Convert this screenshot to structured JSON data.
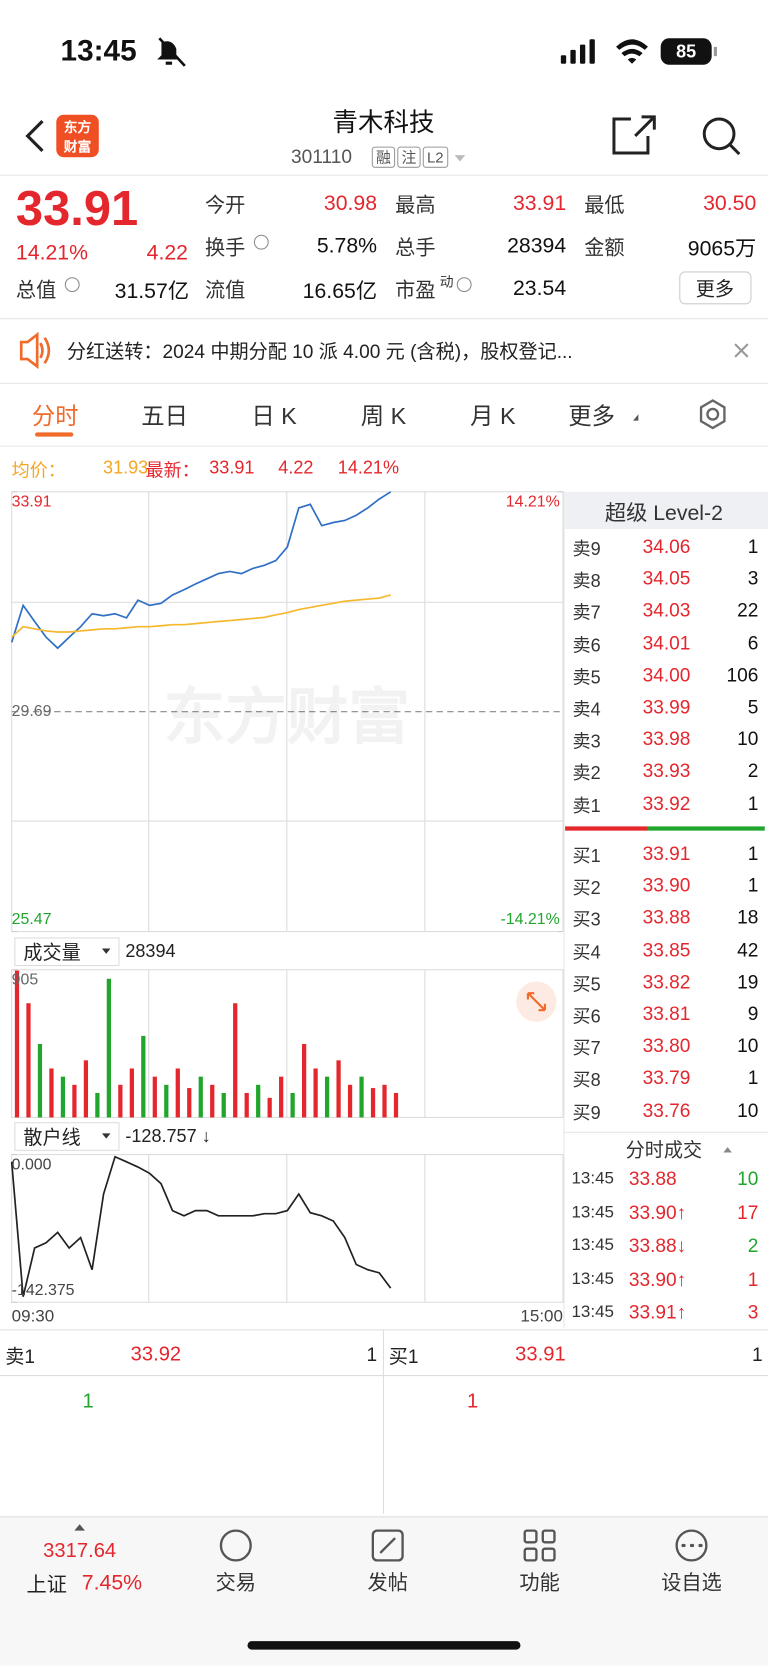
{
  "status_bar": {
    "time": "13:45",
    "battery": "85"
  },
  "header": {
    "logo": [
      "东方",
      "财富"
    ],
    "title": "青木科技",
    "code": "301110",
    "tags": [
      "融",
      "注",
      "L2"
    ]
  },
  "quote": {
    "price": "33.91",
    "change_pct": "14.21%",
    "change": "4.22",
    "stats": [
      {
        "label": "今开",
        "value": "30.98"
      },
      {
        "label": "最高",
        "value": "33.91"
      },
      {
        "label": "最低",
        "value": "30.50"
      },
      {
        "label": "换手",
        "value": "5.78%"
      },
      {
        "label": "总手",
        "value": "28394"
      },
      {
        "label": "金额",
        "value": "9065万"
      },
      {
        "label": "总值",
        "value": "31.57亿"
      },
      {
        "label": "流值",
        "value": "16.65亿"
      },
      {
        "label": "市盈",
        "value": "23.54"
      }
    ],
    "pe_sup": "动",
    "more": "更多"
  },
  "notice": "分红送转：2024 中期分配 10 派 4.00 元 (含税)，股权登记...",
  "tabs": [
    "分时",
    "五日",
    "日 K",
    "周 K",
    "月 K",
    "更多"
  ],
  "legend": {
    "avg_label": "均价：",
    "avg": "31.93",
    "latest_label": "最新：",
    "latest": "33.91",
    "change": "4.22",
    "change_pct": "14.21%"
  },
  "watermark": "东方财富",
  "price_chart": {
    "type": "line",
    "ylim": [
      25.47,
      33.91
    ],
    "yticks": [
      33.91,
      29.69,
      25.47
    ],
    "y2lim": [
      -14.21,
      14.21
    ],
    "y2ticks": [
      {
        "value": 14.21,
        "label": "14.21%"
      },
      {
        "value": -14.21,
        "label": "-14.21%"
      }
    ],
    "series": [
      {
        "color": "#2f6fc6",
        "values": [
          31.02,
          31.73,
          31.42,
          31.12,
          30.91,
          31.12,
          31.32,
          31.57,
          31.53,
          31.57,
          31.49,
          31.83,
          31.73,
          31.77,
          31.93,
          32.03,
          32.14,
          32.24,
          32.34,
          32.38,
          32.34,
          32.44,
          32.5,
          32.59,
          32.85,
          33.6,
          33.67,
          33.26,
          33.32,
          33.36,
          33.46,
          33.6,
          33.77,
          33.91
        ]
      },
      {
        "color": "#f5b82e",
        "values": [
          31.12,
          31.32,
          31.28,
          31.24,
          31.22,
          31.22,
          31.24,
          31.26,
          31.28,
          31.28,
          31.3,
          31.32,
          31.32,
          31.34,
          31.36,
          31.36,
          31.38,
          31.4,
          31.42,
          31.44,
          31.46,
          31.48,
          31.5,
          31.55,
          31.59,
          31.65,
          31.69,
          31.73,
          31.77,
          31.81,
          31.83,
          31.85,
          31.87,
          31.93
        ]
      }
    ],
    "xticks": [
      "09:30",
      "15:00"
    ]
  },
  "volume_chart": {
    "type": "bar",
    "label": "成交量",
    "total": "28394",
    "ylim": [
      0,
      905
    ],
    "yticks": [
      905
    ],
    "values": [
      900,
      700,
      450,
      300,
      250,
      200,
      350,
      150,
      850,
      200,
      300,
      500,
      250,
      200,
      300,
      180,
      250,
      200,
      150,
      700,
      150,
      200,
      120,
      250,
      150,
      450,
      300,
      250,
      350,
      200,
      250,
      180,
      200,
      150
    ],
    "colors": [
      "#e4262d",
      "#e4262d",
      "#21a52d",
      "#e4262d",
      "#21a52d",
      "#e4262d",
      "#e4262d",
      "#21a52d",
      "#21a52d",
      "#e4262d",
      "#e4262d",
      "#21a52d",
      "#e4262d",
      "#21a52d",
      "#e4262d",
      "#e4262d",
      "#21a52d",
      "#e4262d",
      "#21a52d",
      "#e4262d",
      "#e4262d",
      "#21a52d",
      "#e4262d",
      "#e4262d",
      "#21a52d",
      "#e4262d",
      "#e4262d",
      "#21a52d",
      "#e4262d",
      "#e4262d",
      "#21a52d",
      "#e4262d",
      "#e4262d",
      "#e4262d"
    ]
  },
  "retail_chart": {
    "type": "line",
    "label": "散户线",
    "value": "-128.757 ↓",
    "ylim": [
      -142.375,
      0
    ],
    "yticks": [
      {
        "value": 0,
        "label": "0.000"
      },
      -142.375
    ],
    "color": "#222",
    "values": [
      -7,
      -137,
      -90,
      -85,
      -75,
      -90,
      -80,
      -111,
      -38,
      -2,
      -7,
      -12,
      -18,
      -28,
      -54,
      -59,
      -54,
      -54,
      -59,
      -59,
      -59,
      -59,
      -57,
      -57,
      -54,
      -38,
      -56,
      -59,
      -64,
      -80,
      -106,
      -111,
      -114,
      -128.757
    ]
  },
  "order_book": {
    "title": "超级 Level-2",
    "asks": [
      {
        "label": "卖9",
        "price": "34.06",
        "volume": 1
      },
      {
        "label": "卖8",
        "price": "34.05",
        "volume": 3
      },
      {
        "label": "卖7",
        "price": "34.03",
        "volume": 22
      },
      {
        "label": "卖6",
        "price": "34.01",
        "volume": 6
      },
      {
        "label": "卖5",
        "price": "34.00",
        "volume": 106
      },
      {
        "label": "卖4",
        "price": "33.99",
        "volume": 5
      },
      {
        "label": "卖3",
        "price": "33.98",
        "volume": 10
      },
      {
        "label": "卖2",
        "price": "33.93",
        "volume": 2
      },
      {
        "label": "卖1",
        "price": "33.92",
        "volume": 1
      }
    ],
    "bids": [
      {
        "label": "买1",
        "price": "33.91",
        "volume": 1
      },
      {
        "label": "买2",
        "price": "33.90",
        "volume": 1
      },
      {
        "label": "买3",
        "price": "33.88",
        "volume": 18
      },
      {
        "label": "买4",
        "price": "33.85",
        "volume": 42
      },
      {
        "label": "买5",
        "price": "33.82",
        "volume": 19
      },
      {
        "label": "买6",
        "price": "33.81",
        "volume": 9
      },
      {
        "label": "买7",
        "price": "33.80",
        "volume": 10
      },
      {
        "label": "买8",
        "price": "33.79",
        "volume": 1
      },
      {
        "label": "买9",
        "price": "33.76",
        "volume": 10
      }
    ]
  },
  "trades": {
    "title": "分时成交",
    "rows": [
      {
        "time": "13:45",
        "price": "33.88",
        "volume": 10,
        "color": "#21a52d"
      },
      {
        "time": "13:45",
        "price": "33.90↑",
        "volume": 17,
        "color": "#e4262d"
      },
      {
        "time": "13:45",
        "price": "33.88↓",
        "volume": 2,
        "color": "#21a52d"
      },
      {
        "time": "13:45",
        "price": "33.90↑",
        "volume": 1,
        "color": "#e4262d"
      },
      {
        "time": "13:45",
        "price": "33.91↑",
        "volume": 3,
        "color": "#e4262d"
      }
    ]
  },
  "best": {
    "ask_label": "卖1",
    "ask_price": "33.92",
    "ask_volume": 1,
    "bid_label": "买1",
    "bid_price": "33.91",
    "bid_volume": 1,
    "ask_detail": 1,
    "bid_detail": 1
  },
  "bottom_nav": {
    "index_value": "3317.64",
    "index_name": "上证",
    "index_pct": "7.45%",
    "items": [
      "交易",
      "发帖",
      "功能",
      "设自选"
    ]
  }
}
